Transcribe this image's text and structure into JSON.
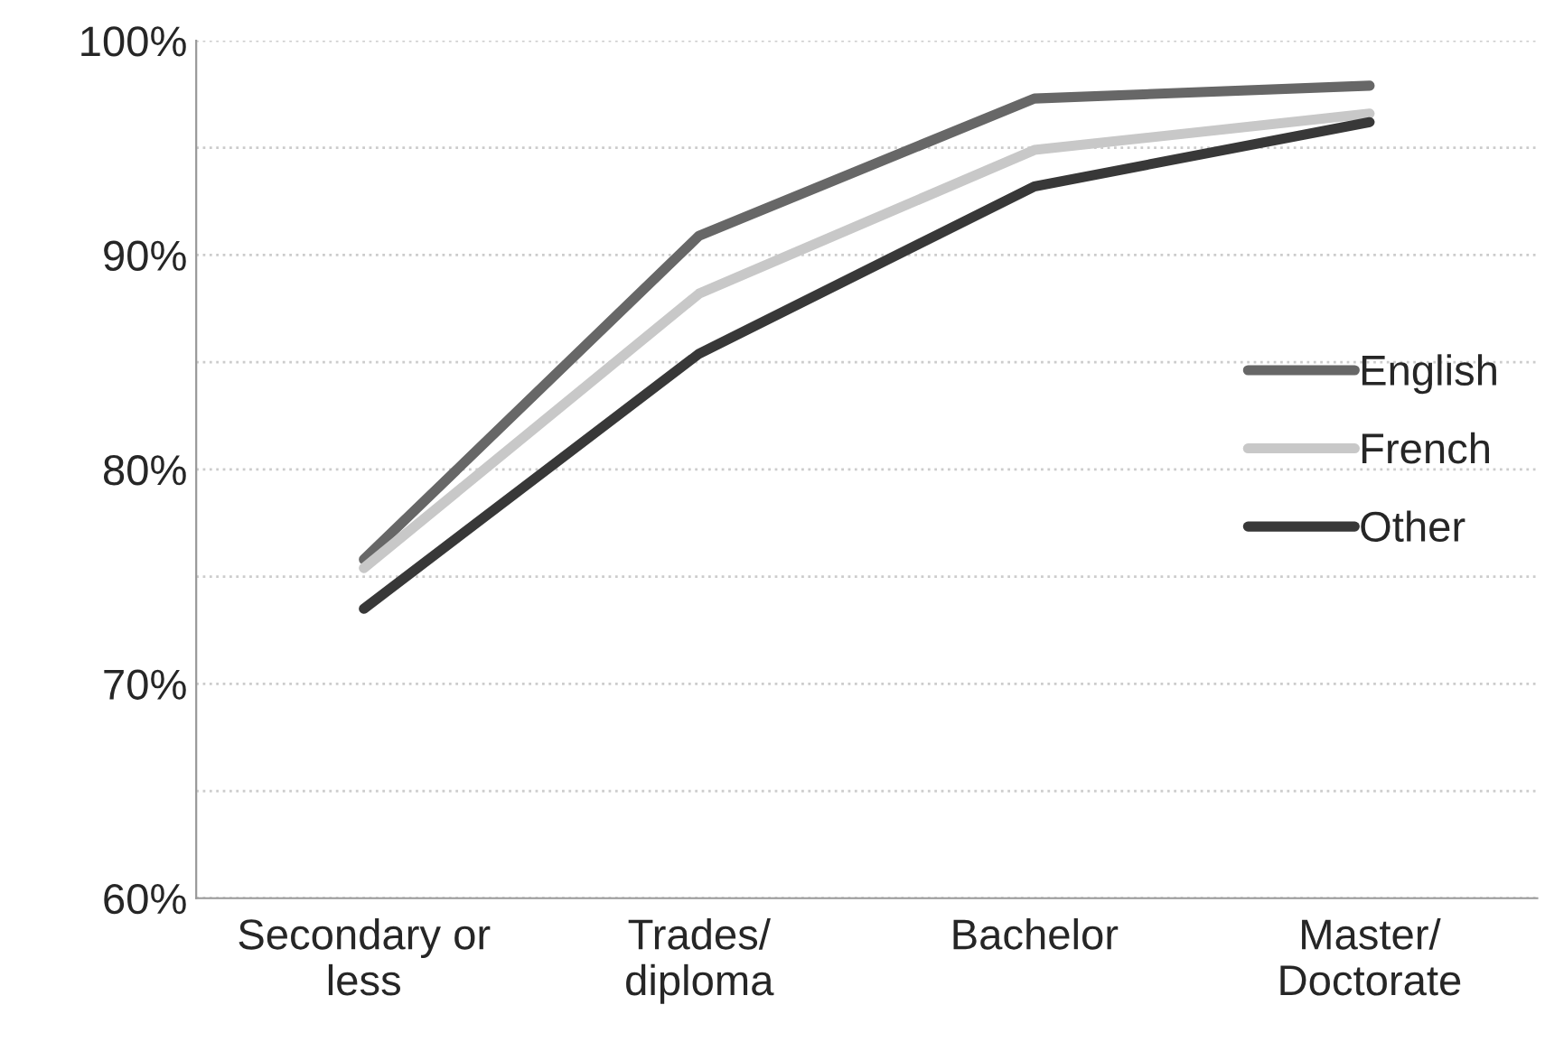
{
  "chart_data": {
    "type": "line",
    "categories": [
      "Secondary or\nless",
      "Trades/\ndiploma",
      "Bachelor",
      "Master/\nDoctorate"
    ],
    "series": [
      {
        "name": "English",
        "color": "#676767",
        "values": [
          75.8,
          90.9,
          97.3,
          97.9
        ]
      },
      {
        "name": "French",
        "color": "#c8c8c8",
        "values": [
          75.4,
          88.2,
          94.9,
          96.6
        ]
      },
      {
        "name": "Other",
        "color": "#383838",
        "values": [
          73.5,
          85.4,
          93.2,
          96.2
        ]
      }
    ],
    "ylim": [
      60,
      100
    ],
    "yticks": [
      {
        "value": 60,
        "label": "60%"
      },
      {
        "value": 65,
        "label": null
      },
      {
        "value": 70,
        "label": "70%"
      },
      {
        "value": 75,
        "label": null
      },
      {
        "value": 80,
        "label": "80%"
      },
      {
        "value": 85,
        "label": null
      },
      {
        "value": 90,
        "label": "90%"
      },
      {
        "value": 95,
        "label": null
      },
      {
        "value": 100,
        "label": "100%"
      }
    ],
    "grid": "y",
    "legend": "right",
    "marker": "none",
    "line_style": "solid"
  }
}
